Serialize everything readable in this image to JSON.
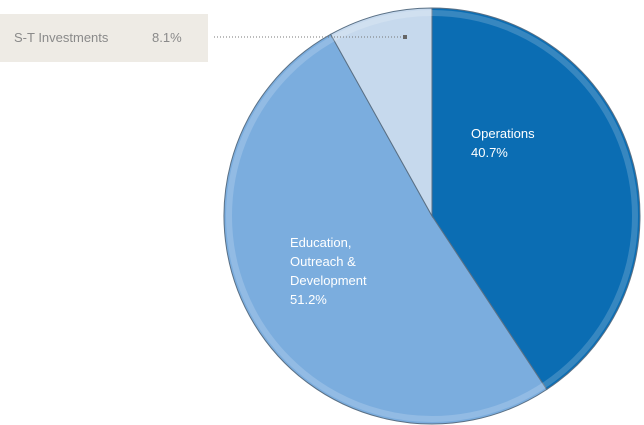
{
  "chart_data": {
    "type": "pie",
    "categories": [
      "Operations",
      "Education, Outreach & Development",
      "S-T Investments"
    ],
    "values": [
      40.7,
      51.2,
      8.1
    ],
    "value_labels": [
      "40.7%",
      "51.2%",
      "8.1%"
    ],
    "colors": [
      "#0b6db3",
      "#7badde",
      "#c6d9ed"
    ]
  }
}
